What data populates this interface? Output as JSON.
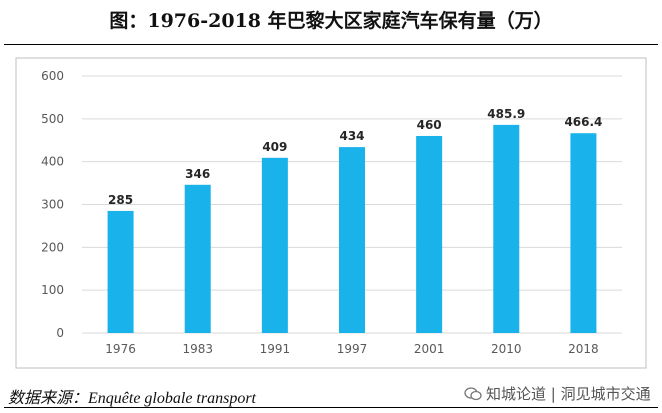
{
  "title": "图：1976-2018 年巴黎大区家庭汽车保有量（万）",
  "source": "数据来源：Enquête globale transport",
  "watermark": "知城论道 | 洞见城市交通",
  "colors": {
    "bar": "#19B2EA",
    "grid": "#D9D9D9",
    "axis_text": "#595959",
    "label": "#262626",
    "frame": "#BFBFBF"
  },
  "chart_data": {
    "type": "bar",
    "title": "1976-2018 年巴黎大区家庭汽车保有量（万）",
    "categories": [
      "1976",
      "1983",
      "1991",
      "1997",
      "2001",
      "2010",
      "2018"
    ],
    "values": [
      285,
      346,
      409,
      434,
      460,
      485.9,
      466.4
    ],
    "value_labels": [
      "285",
      "346",
      "409",
      "434",
      "460",
      "485.9",
      "466.4"
    ],
    "ylim": [
      0,
      600
    ],
    "yticks": [
      "0",
      "100",
      "200",
      "300",
      "400",
      "500",
      "600"
    ],
    "grid": true,
    "xlabel": "",
    "ylabel": ""
  }
}
